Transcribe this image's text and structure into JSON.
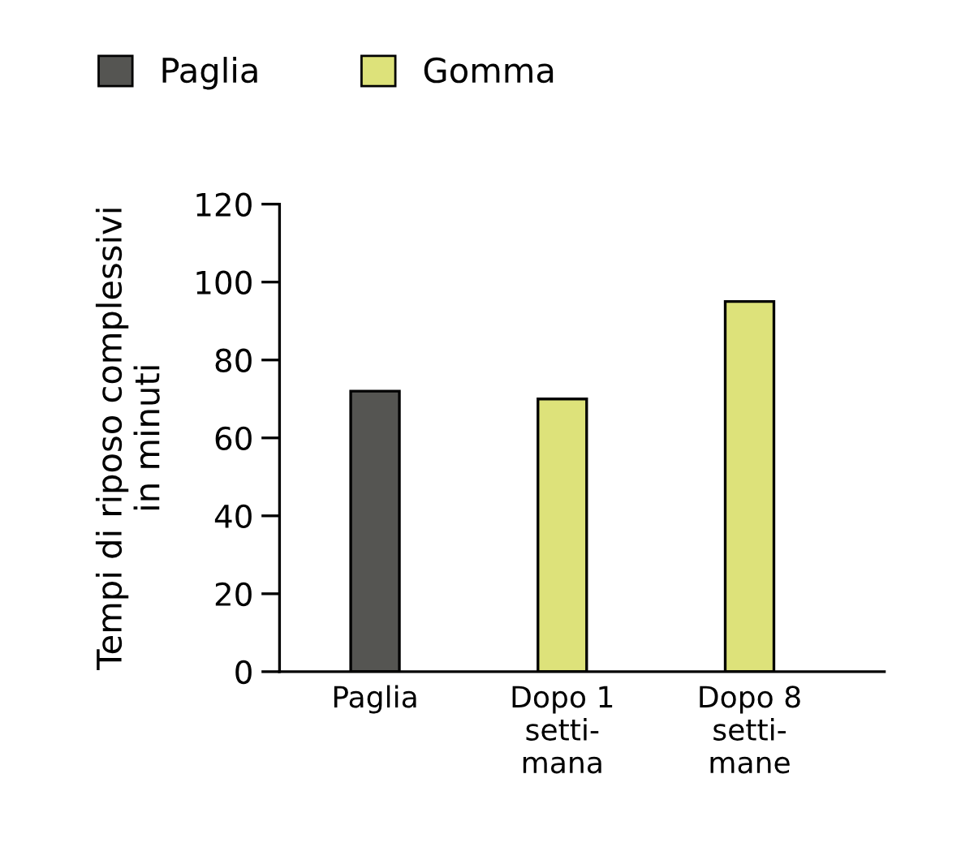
{
  "chart_data": {
    "type": "bar",
    "ylabel": "Tempi di riposo complessivi\nin minuti",
    "categories": [
      "Paglia",
      "Dopo 1\nsetti-\nmana",
      "Dopo 8\nsetti-\nmane"
    ],
    "series": [
      {
        "name": "Paglia",
        "color": "#555552",
        "values": [
          72,
          null,
          null
        ]
      },
      {
        "name": "Gomma",
        "color": "#dde27a",
        "values": [
          null,
          70,
          95
        ]
      }
    ],
    "ylim": [
      0,
      120
    ],
    "yticks": [
      0,
      20,
      40,
      60,
      80,
      100,
      120
    ],
    "grid": false,
    "legend": "top left"
  }
}
